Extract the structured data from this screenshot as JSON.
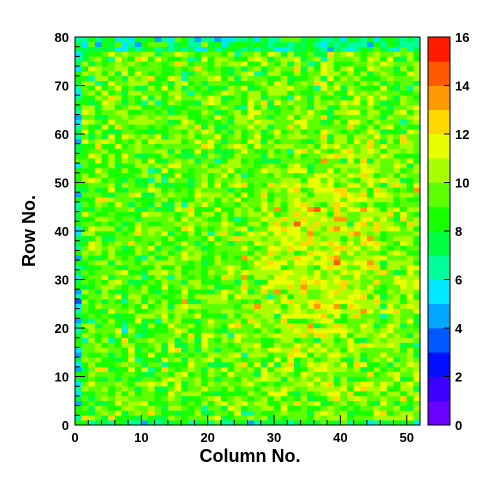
{
  "chart_data": {
    "type": "heatmap",
    "title": "",
    "xlabel": "Column No.",
    "ylabel": "Row No.",
    "xlim": [
      0,
      52
    ],
    "ylim": [
      0,
      80
    ],
    "x_bins": 52,
    "y_bins": 80,
    "x_ticks": [
      "0",
      "10",
      "20",
      "30",
      "40",
      "50"
    ],
    "y_ticks": [
      "0",
      "10",
      "20",
      "30",
      "40",
      "50",
      "60",
      "70",
      "80"
    ],
    "colorbar": {
      "range": [
        0,
        16
      ],
      "ticks": [
        "0",
        "2",
        "4",
        "6",
        "8",
        "10",
        "12",
        "14",
        "16"
      ]
    },
    "values_summary": {
      "typical": 10,
      "min": 0,
      "max": 16,
      "note": "dense per-cell hit counts; values cluster around 9-12 with higher counts toward columns 30-50, rows 25-55"
    },
    "palette": [
      "#6a00ff",
      "#3b00ff",
      "#0010ff",
      "#0058ff",
      "#00a8ff",
      "#00e8ff",
      "#00ff9a",
      "#00ff40",
      "#18ff00",
      "#5cff00",
      "#a8ff00",
      "#e8ff00",
      "#ffd800",
      "#ff9a00",
      "#ff5a00",
      "#ff1a00"
    ]
  }
}
